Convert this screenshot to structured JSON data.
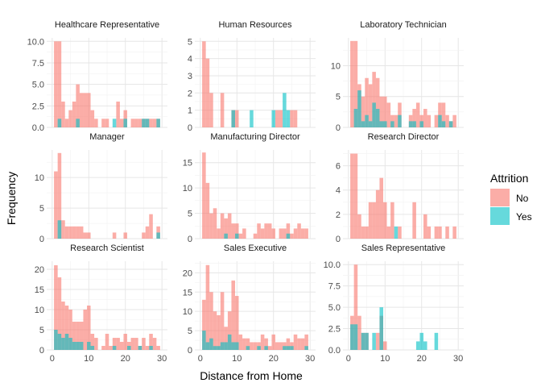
{
  "chart_data": {
    "type": "histogram",
    "xlabel": "Distance from Home",
    "ylabel": "Frequency",
    "xlim": [
      0,
      30
    ],
    "x_ticks": [
      0,
      10,
      20,
      30
    ],
    "bin_width": 1,
    "grid": true,
    "legend": {
      "title": "Attrition",
      "placement": "right",
      "entries": [
        {
          "label": "No",
          "color": "#F8766D"
        },
        {
          "label": "Yes",
          "color": "#00BFC4"
        }
      ]
    },
    "colors": {
      "No": "#F8766D",
      "Yes": "#00BFC4"
    },
    "facets": [
      {
        "title": "Healthcare Representative",
        "ylim": [
          0,
          10.4
        ],
        "y_ticks": [
          0.0,
          2.5,
          5.0,
          7.5,
          10.0
        ],
        "y_tick_labels": [
          "0.0",
          "2.5",
          "5.0",
          "7.5",
          "10.0"
        ],
        "bins": [
          1,
          2,
          3,
          4,
          5,
          6,
          7,
          8,
          9,
          10,
          11,
          12,
          13,
          14,
          15,
          16,
          17,
          18,
          19,
          20,
          21,
          22,
          23,
          24,
          25,
          26,
          27,
          28,
          29
        ],
        "no": [
          10,
          10,
          3,
          1,
          2,
          3,
          5,
          4,
          4,
          4,
          2,
          1,
          0,
          1,
          1,
          0,
          0,
          3,
          1,
          2,
          0,
          1,
          1,
          1,
          1,
          1,
          1,
          1,
          1
        ],
        "yes": [
          0,
          1,
          0,
          0,
          0,
          0,
          1,
          0,
          0,
          0,
          0,
          0,
          0,
          0,
          0,
          0,
          1,
          0,
          0,
          1,
          0,
          0,
          0,
          0,
          1,
          1,
          0,
          0,
          1
        ]
      },
      {
        "title": "Human Resources",
        "ylim": [
          0,
          5.2
        ],
        "y_ticks": [
          0,
          1,
          2,
          3,
          4,
          5
        ],
        "y_tick_labels": [
          "0",
          "1",
          "2",
          "3",
          "4",
          "5"
        ],
        "bins": [
          1,
          2,
          3,
          4,
          5,
          6,
          7,
          8,
          9,
          10,
          11,
          12,
          13,
          14,
          15,
          16,
          17,
          18,
          19,
          20,
          21,
          22,
          23,
          24,
          25,
          26,
          27,
          28,
          29
        ],
        "no": [
          5,
          4,
          2,
          0,
          0,
          2,
          0,
          0,
          1,
          1,
          0,
          0,
          0,
          0,
          0,
          0,
          0,
          0,
          0,
          0,
          1,
          1,
          0,
          0,
          1,
          1,
          0,
          0,
          0
        ],
        "yes": [
          0,
          0,
          0,
          0,
          0,
          0,
          0,
          0,
          1,
          0,
          0,
          0,
          0,
          1,
          0,
          0,
          0,
          0,
          0,
          1,
          0,
          0,
          2,
          1,
          0,
          0,
          0,
          0,
          0
        ]
      },
      {
        "title": "Laboratory Technician",
        "ylim": [
          0,
          14.5
        ],
        "y_ticks": [
          0,
          5,
          10
        ],
        "y_tick_labels": [
          "0",
          "5",
          "10"
        ],
        "bins": [
          1,
          2,
          3,
          4,
          5,
          6,
          7,
          8,
          9,
          10,
          11,
          12,
          13,
          14,
          15,
          16,
          17,
          18,
          19,
          20,
          21,
          22,
          23,
          24,
          25,
          26,
          27,
          28,
          29
        ],
        "no": [
          14,
          14,
          7,
          5,
          8,
          7,
          9,
          8,
          5,
          5,
          4,
          2,
          2,
          4,
          0,
          0,
          2,
          3,
          4,
          2,
          3,
          2,
          0,
          2,
          4,
          4,
          2,
          1,
          2
        ],
        "yes": [
          0,
          3,
          6,
          1,
          2,
          1,
          4,
          3,
          1,
          1,
          0,
          1,
          0,
          2,
          0,
          0,
          1,
          1,
          0,
          1,
          0,
          0,
          0,
          0,
          2,
          1,
          0,
          1,
          0
        ]
      },
      {
        "title": "Manager",
        "ylim": [
          0,
          14.5
        ],
        "y_ticks": [
          0,
          5,
          10
        ],
        "y_tick_labels": [
          "0",
          "5",
          "10"
        ],
        "bins": [
          1,
          2,
          3,
          4,
          5,
          6,
          7,
          8,
          9,
          10,
          11,
          12,
          13,
          14,
          15,
          16,
          17,
          18,
          19,
          20,
          21,
          22,
          23,
          24,
          25,
          26,
          27,
          28,
          29
        ],
        "no": [
          11,
          14,
          3,
          2,
          2,
          2,
          2,
          2,
          1,
          1,
          0,
          0,
          0,
          0,
          0,
          0,
          1,
          0,
          0,
          1,
          0,
          0,
          0,
          0,
          1,
          2,
          4,
          0,
          2
        ],
        "yes": [
          0,
          3,
          0,
          0,
          0,
          0,
          0,
          0,
          0,
          0,
          0,
          0,
          0,
          0,
          0,
          0,
          0,
          0,
          0,
          0,
          0,
          0,
          0,
          0,
          0,
          0,
          0,
          0,
          1
        ]
      },
      {
        "title": "Manufacturing Director",
        "ylim": [
          0,
          17.5
        ],
        "y_ticks": [
          0,
          5,
          10,
          15
        ],
        "y_tick_labels": [
          "0",
          "5",
          "10",
          "15"
        ],
        "bins": [
          1,
          2,
          3,
          4,
          5,
          6,
          7,
          8,
          9,
          10,
          11,
          12,
          13,
          14,
          15,
          16,
          17,
          18,
          19,
          20,
          21,
          22,
          23,
          24,
          25,
          26,
          27,
          28,
          29
        ],
        "no": [
          17,
          11,
          5,
          6,
          2,
          5,
          4,
          5,
          3,
          3,
          1,
          2,
          0,
          0,
          1,
          3,
          2,
          3,
          3,
          2,
          0,
          2,
          2,
          3,
          1,
          2,
          3,
          2,
          2
        ],
        "yes": [
          0,
          0,
          0,
          0,
          0,
          0,
          1,
          0,
          0,
          1,
          0,
          0,
          0,
          0,
          0,
          0,
          0,
          0,
          0,
          0,
          0,
          0,
          0,
          1,
          0,
          0,
          0,
          0,
          0
        ]
      },
      {
        "title": "Research Director",
        "ylim": [
          0,
          7.3
        ],
        "y_ticks": [
          0,
          2,
          4,
          6
        ],
        "y_tick_labels": [
          "0",
          "2",
          "4",
          "6"
        ],
        "bins": [
          1,
          2,
          3,
          4,
          5,
          6,
          7,
          8,
          9,
          10,
          11,
          12,
          13,
          14,
          15,
          16,
          17,
          18,
          19,
          20,
          21,
          22,
          23,
          24,
          25,
          26,
          27,
          28,
          29
        ],
        "no": [
          7,
          7,
          2,
          1,
          1,
          3,
          3,
          4,
          5,
          3,
          1,
          3,
          0,
          1,
          0,
          0,
          0,
          3,
          0,
          0,
          2,
          1,
          0,
          1,
          1,
          0,
          1,
          0,
          1
        ],
        "yes": [
          0,
          0,
          0,
          0,
          0,
          0,
          0,
          0,
          0,
          0,
          0,
          0,
          1,
          0,
          0,
          0,
          0,
          0,
          0,
          0,
          0,
          0,
          0,
          0,
          0,
          0,
          0,
          0,
          0
        ]
      },
      {
        "title": "Research Scientist",
        "ylim": [
          0,
          22
        ],
        "y_ticks": [
          0,
          5,
          10,
          15,
          20
        ],
        "y_tick_labels": [
          "0",
          "5",
          "10",
          "15",
          "20"
        ],
        "bins": [
          1,
          2,
          3,
          4,
          5,
          6,
          7,
          8,
          9,
          10,
          11,
          12,
          13,
          14,
          15,
          16,
          17,
          18,
          19,
          20,
          21,
          22,
          23,
          24,
          25,
          26,
          27,
          28,
          29
        ],
        "no": [
          21,
          18,
          12,
          11,
          10,
          7,
          7,
          7,
          10,
          11,
          4,
          3,
          0,
          1,
          4,
          1,
          3,
          3,
          2,
          4,
          2,
          3,
          3,
          1,
          3,
          1,
          4,
          3,
          1
        ],
        "yes": [
          5,
          4,
          3,
          4,
          3,
          2,
          2,
          2,
          0,
          2,
          1,
          0,
          0,
          0,
          0,
          0,
          1,
          0,
          0,
          0,
          1,
          0,
          0,
          1,
          0,
          0,
          1,
          0,
          0
        ]
      },
      {
        "title": "Sales Executive",
        "ylim": [
          0,
          23
        ],
        "y_ticks": [
          0,
          5,
          10,
          15,
          20
        ],
        "y_tick_labels": [
          "0",
          "5",
          "10",
          "15",
          "20"
        ],
        "bins": [
          1,
          2,
          3,
          4,
          5,
          6,
          7,
          8,
          9,
          10,
          11,
          12,
          13,
          14,
          15,
          16,
          17,
          18,
          19,
          20,
          21,
          22,
          23,
          24,
          25,
          26,
          27,
          28,
          29
        ],
        "no": [
          13,
          22,
          15,
          10,
          9,
          15,
          6,
          10,
          18,
          14,
          4,
          3,
          3,
          2,
          2,
          2,
          4,
          3,
          1,
          4,
          2,
          2,
          2,
          3,
          2,
          4,
          3,
          3,
          4
        ],
        "yes": [
          5,
          2,
          3,
          1,
          1,
          2,
          2,
          4,
          2,
          2,
          0,
          0,
          1,
          0,
          0,
          1,
          0,
          1,
          0,
          0,
          0,
          0,
          1,
          1,
          1,
          0,
          0,
          0,
          1
        ]
      },
      {
        "title": "Sales Representative",
        "ylim": [
          0,
          10.4
        ],
        "y_ticks": [
          0.0,
          2.5,
          5.0,
          7.5,
          10.0
        ],
        "y_tick_labels": [
          "0.0",
          "2.5",
          "5.0",
          "7.5",
          "10.0"
        ],
        "bins": [
          1,
          2,
          3,
          4,
          5,
          6,
          7,
          8,
          9,
          10,
          11,
          12,
          13,
          14,
          15,
          16,
          17,
          18,
          19,
          20,
          21,
          22,
          23,
          24,
          25,
          26,
          27,
          28,
          29
        ],
        "no": [
          4,
          10,
          4,
          2,
          2,
          0,
          0,
          2,
          4,
          1,
          0,
          0,
          0,
          0,
          0,
          0,
          0,
          0,
          0,
          0,
          0,
          0,
          0,
          0,
          0,
          0,
          0,
          0,
          0
        ],
        "yes": [
          3,
          3,
          0,
          2,
          2,
          0,
          2,
          0,
          5,
          0,
          0,
          0,
          0,
          0,
          0,
          0,
          0,
          0,
          1,
          2,
          1,
          0,
          0,
          2,
          0,
          0,
          0,
          0,
          0
        ]
      }
    ]
  }
}
